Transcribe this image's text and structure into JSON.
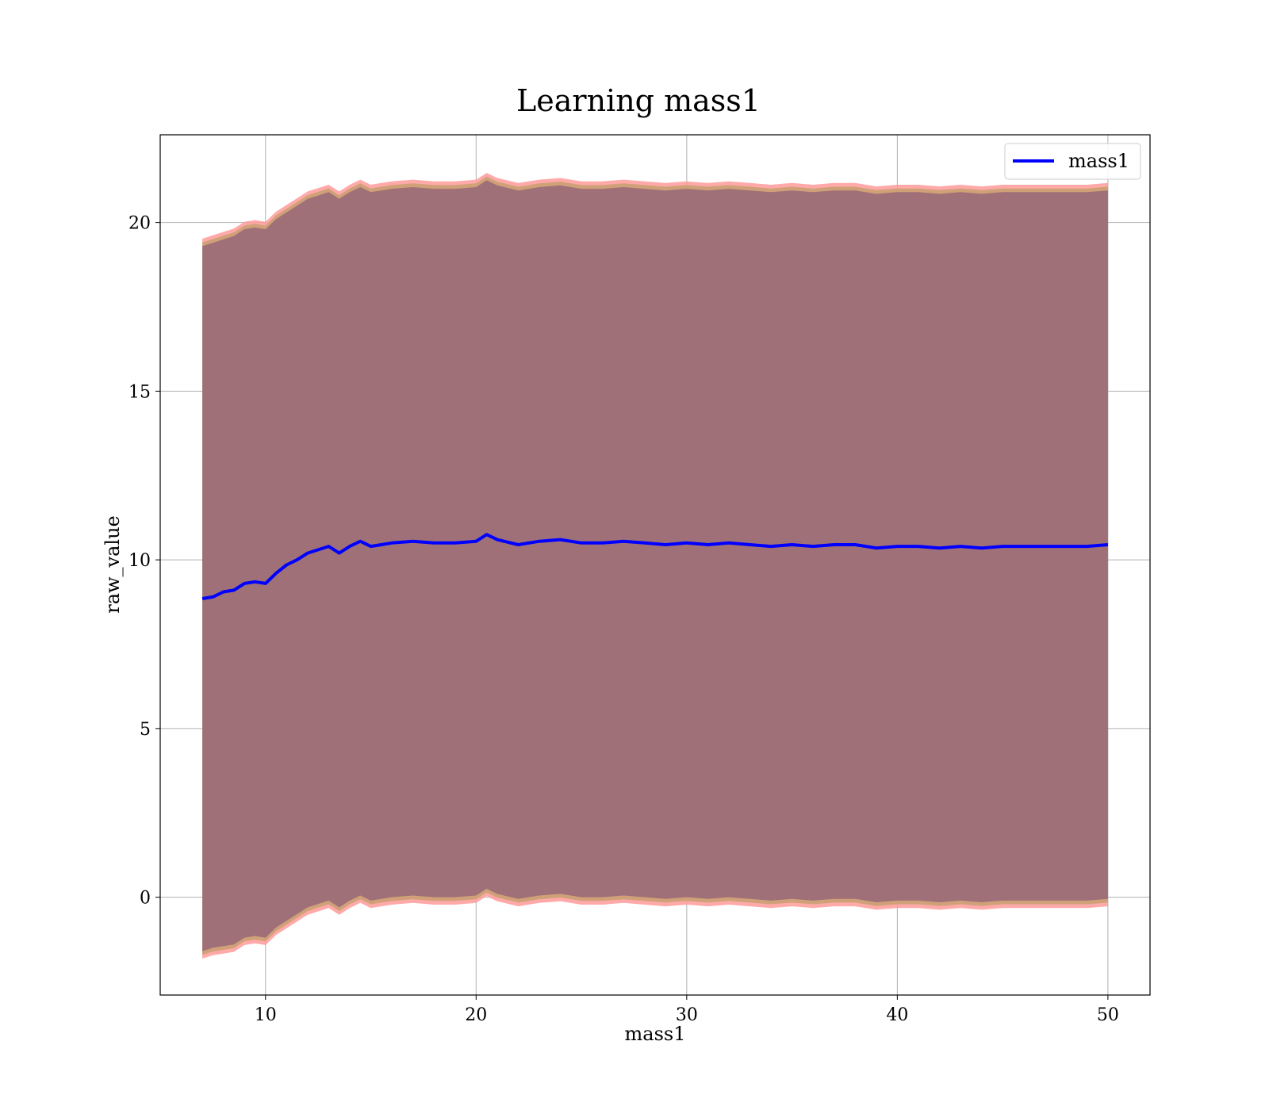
{
  "chart_data": {
    "type": "line",
    "title": "Learning mass1",
    "xlabel": "mass1",
    "ylabel": "raw_value",
    "xlim": [
      5,
      52
    ],
    "ylim": [
      -2.9,
      22.6
    ],
    "x_ticks": [
      10,
      20,
      30,
      40,
      50
    ],
    "x_tick_labels": [
      "10",
      "20",
      "30",
      "40",
      "50"
    ],
    "y_ticks": [
      0,
      5,
      10,
      15,
      20
    ],
    "y_tick_labels": [
      "0",
      "5",
      "10",
      "15",
      "20"
    ],
    "grid": true,
    "legend_position": "top-right",
    "colors": {
      "line": "#0000ff",
      "band_outer": "#ff9a9a",
      "band_mid": "#c8a070",
      "band_inner": "#a07078",
      "grid": "#b0b0b0"
    },
    "series": [
      {
        "name": "mass1",
        "x": [
          7,
          7.5,
          8,
          8.5,
          9,
          9.5,
          10,
          10.5,
          11,
          11.5,
          12,
          12.5,
          13,
          13.5,
          14,
          14.5,
          15,
          15.5,
          16,
          17,
          18,
          19,
          20,
          20.5,
          21,
          22,
          23,
          24,
          25,
          26,
          27,
          28,
          29,
          30,
          31,
          32,
          33,
          34,
          35,
          36,
          37,
          38,
          39,
          40,
          41,
          42,
          43,
          44,
          45,
          46,
          47,
          48,
          49,
          50
        ],
        "y": [
          8.85,
          8.9,
          9.05,
          9.1,
          9.3,
          9.35,
          9.3,
          9.6,
          9.85,
          10.0,
          10.2,
          10.3,
          10.4,
          10.2,
          10.4,
          10.55,
          10.4,
          10.45,
          10.5,
          10.55,
          10.5,
          10.5,
          10.55,
          10.75,
          10.6,
          10.45,
          10.55,
          10.6,
          10.5,
          10.5,
          10.55,
          10.5,
          10.45,
          10.5,
          10.45,
          10.5,
          10.45,
          10.4,
          10.45,
          10.4,
          10.45,
          10.45,
          10.35,
          10.4,
          10.4,
          10.35,
          10.4,
          10.35,
          10.4,
          10.4,
          10.4,
          10.4,
          10.4,
          10.45
        ]
      }
    ],
    "band": {
      "lower": [
        -1.6,
        -1.5,
        -1.45,
        -1.4,
        -1.2,
        -1.15,
        -1.2,
        -0.9,
        -0.7,
        -0.5,
        -0.3,
        -0.2,
        -0.1,
        -0.3,
        -0.1,
        0.05,
        -0.1,
        -0.05,
        0.0,
        0.05,
        0.0,
        0.0,
        0.05,
        0.25,
        0.1,
        -0.05,
        0.05,
        0.1,
        0.0,
        0.0,
        0.05,
        0.0,
        -0.05,
        0.0,
        -0.05,
        0.0,
        -0.05,
        -0.1,
        -0.05,
        -0.1,
        -0.05,
        -0.05,
        -0.15,
        -0.1,
        -0.1,
        -0.15,
        -0.1,
        -0.15,
        -0.1,
        -0.1,
        -0.1,
        -0.1,
        -0.1,
        -0.05
      ],
      "upper": [
        19.3,
        19.4,
        19.5,
        19.6,
        19.8,
        19.85,
        19.8,
        20.1,
        20.3,
        20.5,
        20.7,
        20.8,
        20.9,
        20.7,
        20.9,
        21.05,
        20.9,
        20.95,
        21.0,
        21.05,
        21.0,
        21.0,
        21.05,
        21.25,
        21.1,
        20.95,
        21.05,
        21.1,
        21.0,
        21.0,
        21.05,
        21.0,
        20.95,
        21.0,
        20.95,
        21.0,
        20.95,
        20.9,
        20.95,
        20.9,
        20.95,
        20.95,
        20.85,
        20.9,
        20.9,
        20.85,
        20.9,
        20.85,
        20.9,
        20.9,
        20.9,
        20.9,
        20.9,
        20.95
      ]
    }
  }
}
